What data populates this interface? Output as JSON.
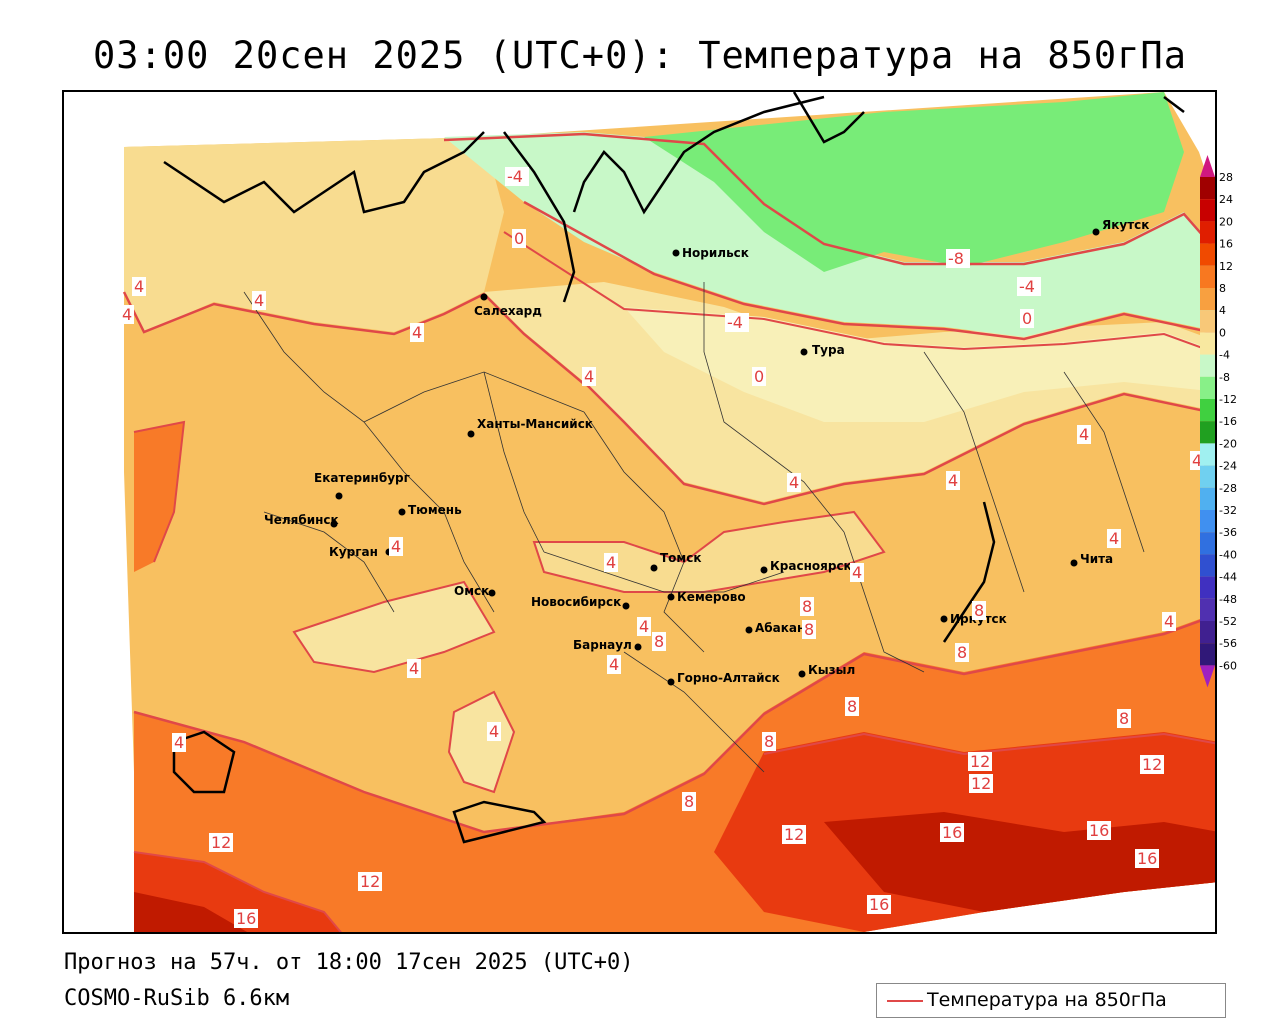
{
  "title": "03:00 20сен 2025 (UTC+0): Температура на 850гПа",
  "forecast_text": "Прогноз на 57ч. от 18:00 17сен 2025 (UTC+0)",
  "model_text": "COSMO-RuSib 6.6км",
  "legend": {
    "label": "Температура на 850гПа",
    "line_color": "#e04848"
  },
  "colorbar": {
    "ticks": [
      "28",
      "24",
      "20",
      "16",
      "12",
      "8",
      "4",
      "0",
      "-4",
      "-8",
      "-12",
      "-16",
      "-20",
      "-24",
      "-28",
      "-32",
      "-36",
      "-40",
      "-44",
      "-48",
      "-52",
      "-56",
      "-60"
    ],
    "colors": [
      "#a00000",
      "#c80000",
      "#e01e00",
      "#f04a00",
      "#f87820",
      "#f8a040",
      "#f8c878",
      "#f8e8a0",
      "#c8f8c8",
      "#88f088",
      "#40d040",
      "#20a020",
      "#a0f0f0",
      "#70d0f0",
      "#50b0f0",
      "#4090f0",
      "#3070e0",
      "#3050d0",
      "#4030c0",
      "#5030b0",
      "#402090",
      "#301878"
    ],
    "top_color": "#d01880",
    "bottom_color": "#a020c0"
  },
  "cities": [
    {
      "name": "Норильск"
    },
    {
      "name": "Якутск"
    },
    {
      "name": "Салехард"
    },
    {
      "name": "Тура"
    },
    {
      "name": "Ханты-Мансийск"
    },
    {
      "name": "Екатеринбург"
    },
    {
      "name": "Тюмень"
    },
    {
      "name": "Челябинск"
    },
    {
      "name": "Курган"
    },
    {
      "name": "Омск"
    },
    {
      "name": "Новосибирск"
    },
    {
      "name": "Томск"
    },
    {
      "name": "Кемерово"
    },
    {
      "name": "Красноярск"
    },
    {
      "name": "Абакан"
    },
    {
      "name": "Барнаул"
    },
    {
      "name": "Горно-Алтайск"
    },
    {
      "name": "Кызыл"
    },
    {
      "name": "Иркутск"
    },
    {
      "name": "Чита"
    }
  ],
  "isotherm_labels": [
    "-4",
    "0",
    "-8",
    "-4",
    "-4",
    "0",
    "0",
    "4",
    "4",
    "4",
    "4",
    "4",
    "4",
    "4",
    "4",
    "4",
    "4",
    "4",
    "4",
    "4",
    "4",
    "4",
    "4",
    "4",
    "4",
    "4",
    "8",
    "8",
    "8",
    "8",
    "8",
    "8",
    "8",
    "8",
    "8",
    "12",
    "12",
    "12",
    "12",
    "12",
    "12",
    "16",
    "16",
    "16",
    "16",
    "16"
  ]
}
